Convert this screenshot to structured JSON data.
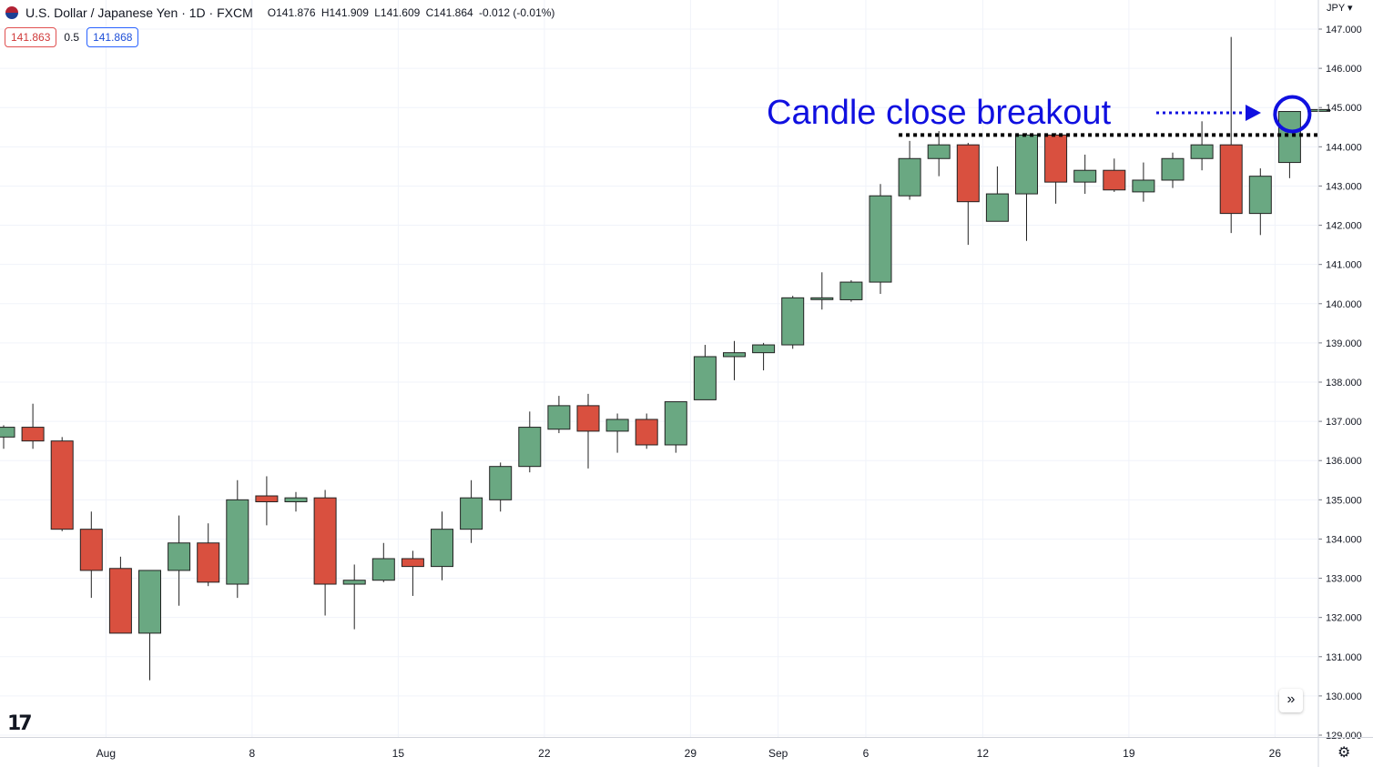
{
  "header": {
    "symbol_title": "U.S. Dollar / Japanese Yen · 1D · FXCM",
    "ohlc": {
      "open": "O141.876",
      "high": "H141.909",
      "low": "L141.609",
      "close": "C141.864",
      "change": "-0.012 (-0.01%)"
    }
  },
  "price_boxes": {
    "sell": "141.863",
    "spread": "0.5",
    "buy": "141.868"
  },
  "currency_label": "JPY",
  "logo_text": "17",
  "scroll_icon": "double-chevron-right-icon",
  "settings_icon": "gear-icon",
  "colors": {
    "up": "#6aa882",
    "down": "#d9503f",
    "annotation": "#1010e0",
    "grid": "#f0f3fa"
  },
  "chart_data": {
    "type": "candlestick",
    "title": "U.S. Dollar / Japanese Yen · 1D · FXCM",
    "ylim": [
      128.8,
      147.3
    ],
    "y_ticks": [
      "129.000",
      "130.000",
      "131.000",
      "132.000",
      "133.000",
      "134.000",
      "135.000",
      "136.000",
      "137.000",
      "138.000",
      "139.000",
      "140.000",
      "141.000",
      "142.000",
      "143.000",
      "144.000",
      "145.000",
      "146.000",
      "147.000"
    ],
    "x_ticks": [
      {
        "label": "Aug",
        "index": 3.5
      },
      {
        "label": "8",
        "index": 8.5
      },
      {
        "label": "15",
        "index": 13.5
      },
      {
        "label": "22",
        "index": 18.5
      },
      {
        "label": "29",
        "index": 23.5
      },
      {
        "label": "Sep",
        "index": 26.5
      },
      {
        "label": "6",
        "index": 29.5
      },
      {
        "label": "12",
        "index": 33.5
      },
      {
        "label": "19",
        "index": 38.5
      },
      {
        "label": "26",
        "index": 43.5
      }
    ],
    "candles": [
      {
        "o": 136.6,
        "h": 136.9,
        "l": 136.3,
        "c": 136.85
      },
      {
        "o": 136.85,
        "h": 137.45,
        "l": 136.3,
        "c": 136.5
      },
      {
        "o": 136.5,
        "h": 136.6,
        "l": 134.2,
        "c": 134.25
      },
      {
        "o": 134.25,
        "h": 134.7,
        "l": 132.5,
        "c": 133.2
      },
      {
        "o": 133.25,
        "h": 133.55,
        "l": 131.6,
        "c": 131.6
      },
      {
        "o": 131.6,
        "h": 133.2,
        "l": 130.4,
        "c": 133.2
      },
      {
        "o": 133.2,
        "h": 134.6,
        "l": 132.3,
        "c": 133.9
      },
      {
        "o": 133.9,
        "h": 134.4,
        "l": 132.8,
        "c": 132.9
      },
      {
        "o": 132.85,
        "h": 135.5,
        "l": 132.5,
        "c": 135.0
      },
      {
        "o": 135.1,
        "h": 135.6,
        "l": 134.35,
        "c": 134.95
      },
      {
        "o": 134.95,
        "h": 135.2,
        "l": 134.7,
        "c": 135.05
      },
      {
        "o": 135.05,
        "h": 135.25,
        "l": 132.05,
        "c": 132.85
      },
      {
        "o": 132.85,
        "h": 133.35,
        "l": 131.7,
        "c": 132.95
      },
      {
        "o": 132.95,
        "h": 133.9,
        "l": 132.9,
        "c": 133.5
      },
      {
        "o": 133.5,
        "h": 133.7,
        "l": 132.55,
        "c": 133.3
      },
      {
        "o": 133.3,
        "h": 134.7,
        "l": 132.95,
        "c": 134.25
      },
      {
        "o": 134.25,
        "h": 135.5,
        "l": 133.9,
        "c": 135.05
      },
      {
        "o": 135.0,
        "h": 135.95,
        "l": 134.7,
        "c": 135.85
      },
      {
        "o": 135.85,
        "h": 137.25,
        "l": 135.7,
        "c": 136.85
      },
      {
        "o": 136.8,
        "h": 137.65,
        "l": 136.7,
        "c": 137.4
      },
      {
        "o": 137.4,
        "h": 137.7,
        "l": 135.8,
        "c": 136.75
      },
      {
        "o": 136.75,
        "h": 137.2,
        "l": 136.2,
        "c": 137.05
      },
      {
        "o": 137.05,
        "h": 137.2,
        "l": 136.3,
        "c": 136.4
      },
      {
        "o": 136.4,
        "h": 137.5,
        "l": 136.2,
        "c": 137.5
      },
      {
        "o": 137.55,
        "h": 138.95,
        "l": 137.55,
        "c": 138.65
      },
      {
        "o": 138.65,
        "h": 139.05,
        "l": 138.05,
        "c": 138.75
      },
      {
        "o": 138.75,
        "h": 139.0,
        "l": 138.3,
        "c": 138.95
      },
      {
        "o": 138.95,
        "h": 140.2,
        "l": 138.85,
        "c": 140.15
      },
      {
        "o": 140.15,
        "h": 140.8,
        "l": 139.85,
        "c": 140.15
      },
      {
        "o": 140.1,
        "h": 140.6,
        "l": 140.05,
        "c": 140.55
      },
      {
        "o": 140.55,
        "h": 143.05,
        "l": 140.25,
        "c": 142.75
      },
      {
        "o": 142.75,
        "h": 144.15,
        "l": 142.65,
        "c": 143.7
      },
      {
        "o": 143.7,
        "h": 144.4,
        "l": 143.25,
        "c": 144.05
      },
      {
        "o": 144.05,
        "h": 144.1,
        "l": 141.5,
        "c": 142.6
      },
      {
        "o": 142.1,
        "h": 143.5,
        "l": 142.1,
        "c": 142.8
      },
      {
        "o": 142.8,
        "h": 144.35,
        "l": 141.6,
        "c": 144.3
      },
      {
        "o": 144.3,
        "h": 144.35,
        "l": 142.55,
        "c": 143.1
      },
      {
        "o": 143.1,
        "h": 143.8,
        "l": 142.8,
        "c": 143.4
      },
      {
        "o": 143.4,
        "h": 143.7,
        "l": 142.85,
        "c": 142.9
      },
      {
        "o": 142.85,
        "h": 143.6,
        "l": 142.6,
        "c": 143.15
      },
      {
        "o": 143.15,
        "h": 143.85,
        "l": 142.95,
        "c": 143.7
      },
      {
        "o": 143.7,
        "h": 144.65,
        "l": 143.4,
        "c": 144.05
      },
      {
        "o": 144.05,
        "h": 146.8,
        "l": 141.8,
        "c": 142.3
      },
      {
        "o": 142.3,
        "h": 143.45,
        "l": 141.75,
        "c": 143.25
      },
      {
        "o": 143.6,
        "h": 144.9,
        "l": 143.2,
        "c": 144.9
      },
      {
        "o": 144.92,
        "h": 144.95,
        "l": 144.9,
        "c": 144.95
      }
    ],
    "annotation": {
      "text": "Candle close breakout",
      "resistance_level": 144.3,
      "resistance_from_index": 31,
      "circle_index": 44,
      "circle_price": 144.9
    }
  }
}
